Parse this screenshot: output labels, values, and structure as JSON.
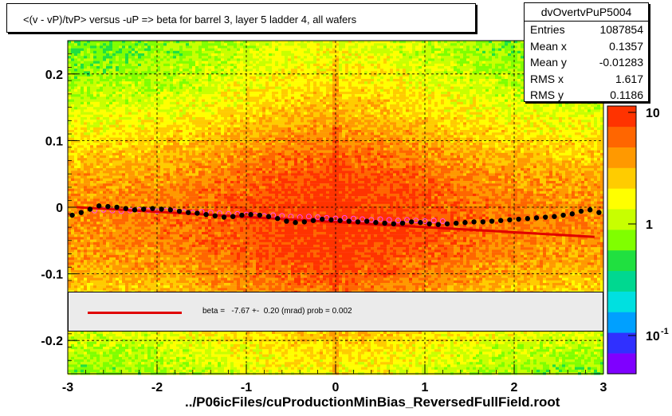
{
  "title": "<(v - vP)/tvP>  versus  -uP => beta for barrel 3, layer 5 ladder 4, all wafers",
  "stats": {
    "name": "dvOvertvPuP5004",
    "rows": [
      {
        "label": "Entries",
        "value": "1087854"
      },
      {
        "label": "Mean x",
        "value": "0.1357"
      },
      {
        "label": "Mean y",
        "value": "-0.01283"
      },
      {
        "label": "RMS x",
        "value": "1.617"
      },
      {
        "label": "RMS y",
        "value": "0.1186"
      }
    ]
  },
  "fit_legend": "beta =   -7.67 +-  0.20 (mrad) prob = 0.002",
  "x_caption": "../P06icFiles/cuProductionMinBias_ReversedFullField.root",
  "colors": {
    "fit_line": "#e00000",
    "profile_points": "#000000",
    "open_points": "#ff40ff"
  },
  "chart_data": {
    "type": "heatmap",
    "xlim": [
      -3,
      3
    ],
    "ylim": [
      -0.25,
      0.25
    ],
    "x_ticks": [
      "-3",
      "-2",
      "-1",
      "0",
      "1",
      "2",
      "3"
    ],
    "y_ticks": [
      "0.2",
      "0.1",
      "0",
      "-0.1",
      "-0.2"
    ],
    "z_scale": "log",
    "z_ticks": [
      "10",
      "1",
      "10"
    ],
    "z_tick_superscript": "-1",
    "grid": true,
    "palette": [
      "#7f00ff",
      "#3030ff",
      "#00a0ff",
      "#00e0e0",
      "#00d890",
      "#20e040",
      "#80ff00",
      "#c8ff00",
      "#ffff00",
      "#ffcc00",
      "#ff9900",
      "#ff6600",
      "#ff3300"
    ],
    "fit_line": {
      "x": [
        -2.9,
        2.9
      ],
      "y": [
        0.0,
        -0.0445
      ]
    },
    "profile_points": {
      "x": [
        -2.95,
        -2.85,
        -2.75,
        -2.65,
        -2.55,
        -2.45,
        -2.35,
        -2.25,
        -2.15,
        -2.05,
        -1.95,
        -1.85,
        -1.75,
        -1.65,
        -1.55,
        -1.45,
        -1.35,
        -1.25,
        -1.15,
        -1.05,
        -0.95,
        -0.85,
        -0.75,
        -0.65,
        -0.55,
        -0.45,
        -0.35,
        -0.25,
        -0.15,
        -0.05,
        0.05,
        0.15,
        0.25,
        0.35,
        0.45,
        0.55,
        0.65,
        0.75,
        0.85,
        0.95,
        1.05,
        1.15,
        1.25,
        1.35,
        1.45,
        1.55,
        1.65,
        1.75,
        1.85,
        1.95,
        2.05,
        2.15,
        2.25,
        2.35,
        2.45,
        2.55,
        2.65,
        2.75,
        2.85,
        2.95
      ],
      "y": [
        -0.012,
        -0.008,
        -0.003,
        0.002,
        0.001,
        0.0,
        -0.002,
        -0.004,
        -0.003,
        -0.002,
        -0.003,
        -0.004,
        -0.006,
        -0.008,
        -0.009,
        -0.011,
        -0.013,
        -0.015,
        -0.014,
        -0.012,
        -0.011,
        -0.012,
        -0.014,
        -0.017,
        -0.021,
        -0.023,
        -0.022,
        -0.02,
        -0.018,
        -0.019,
        -0.02,
        -0.021,
        -0.022,
        -0.021,
        -0.023,
        -0.024,
        -0.025,
        -0.024,
        -0.022,
        -0.023,
        -0.025,
        -0.026,
        -0.025,
        -0.024,
        -0.023,
        -0.022,
        -0.022,
        -0.021,
        -0.02,
        -0.019,
        -0.018,
        -0.017,
        -0.016,
        -0.015,
        -0.014,
        -0.012,
        -0.01,
        -0.006,
        -0.004,
        -0.008
      ]
    },
    "open_points": {
      "x": [
        -2.7,
        -2.6,
        -2.5,
        -2.4,
        -2.3,
        -2.2,
        -2.1,
        -2.0,
        -1.9,
        -1.8,
        -1.7,
        -1.6,
        -1.5,
        -1.4,
        -1.3,
        -1.2,
        -1.1,
        -1.0,
        -0.9,
        -0.8,
        -0.7,
        -0.6,
        -0.5,
        -0.4,
        -0.3,
        -0.2,
        -0.1,
        0.0,
        0.1,
        0.2,
        0.3,
        0.4,
        0.5,
        0.6,
        0.7,
        0.8,
        0.9,
        1.0,
        1.1,
        1.2
      ],
      "y": [
        -0.005,
        -0.004,
        -0.005,
        -0.006,
        -0.005,
        -0.004,
        -0.005,
        -0.006,
        -0.005,
        -0.006,
        -0.007,
        -0.008,
        -0.007,
        -0.008,
        -0.009,
        -0.01,
        -0.01,
        -0.011,
        -0.012,
        -0.013,
        -0.012,
        -0.013,
        -0.014,
        -0.015,
        -0.014,
        -0.015,
        -0.016,
        -0.017,
        -0.016,
        -0.017,
        -0.018,
        -0.019,
        -0.018,
        -0.019,
        -0.02,
        -0.019,
        -0.02,
        -0.021,
        -0.02,
        -0.021
      ]
    }
  }
}
